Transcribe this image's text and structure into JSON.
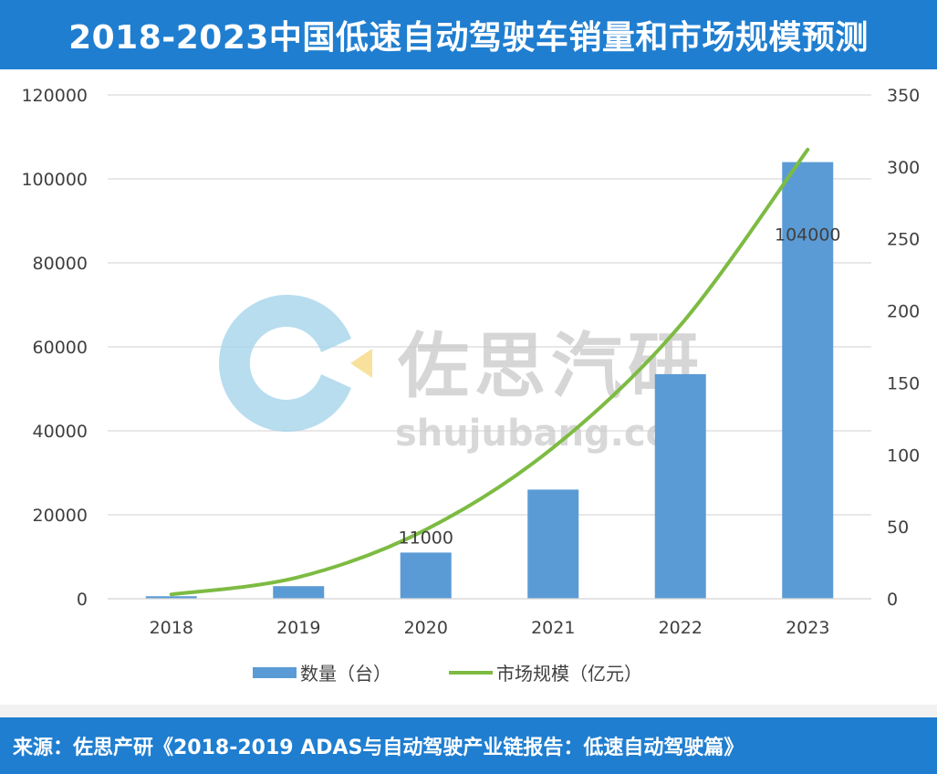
{
  "title": "2018-2023中国低速自动驾驶车销量和市场规模预测",
  "footer": "来源：佐思产研《2018-2019 ADAS与自动驾驶产业链报告：低速自动驾驶篇》",
  "watermark": {
    "name": "佐思汽研",
    "url": "shujubang.com"
  },
  "colors": {
    "header": "#1f7ed0",
    "bar": "#5b9bd5",
    "line": "#7dbb42",
    "grid": "#d9d9d9"
  },
  "chart_data": {
    "type": "bar",
    "categories": [
      "2018",
      "2019",
      "2020",
      "2021",
      "2022",
      "2023"
    ],
    "series": [
      {
        "name": "数量（台）",
        "type": "bar",
        "axis": "left",
        "values": [
          600,
          3000,
          11000,
          26000,
          53500,
          104000
        ]
      },
      {
        "name": "市场规模（亿元）",
        "type": "line",
        "axis": "right",
        "values": [
          3,
          15,
          48,
          105,
          190,
          312
        ]
      }
    ],
    "data_labels": [
      {
        "category": "2020",
        "text": "11000"
      },
      {
        "category": "2023",
        "text": "104000"
      }
    ],
    "y_left": {
      "min": 0,
      "max": 120000,
      "ticks": [
        "0",
        "20000",
        "40000",
        "60000",
        "80000",
        "100000",
        "120000"
      ]
    },
    "y_right": {
      "min": 0,
      "max": 350,
      "ticks": [
        "0",
        "50",
        "100",
        "150",
        "200",
        "250",
        "300",
        "350"
      ]
    },
    "grid": true,
    "legend": "bottom"
  }
}
